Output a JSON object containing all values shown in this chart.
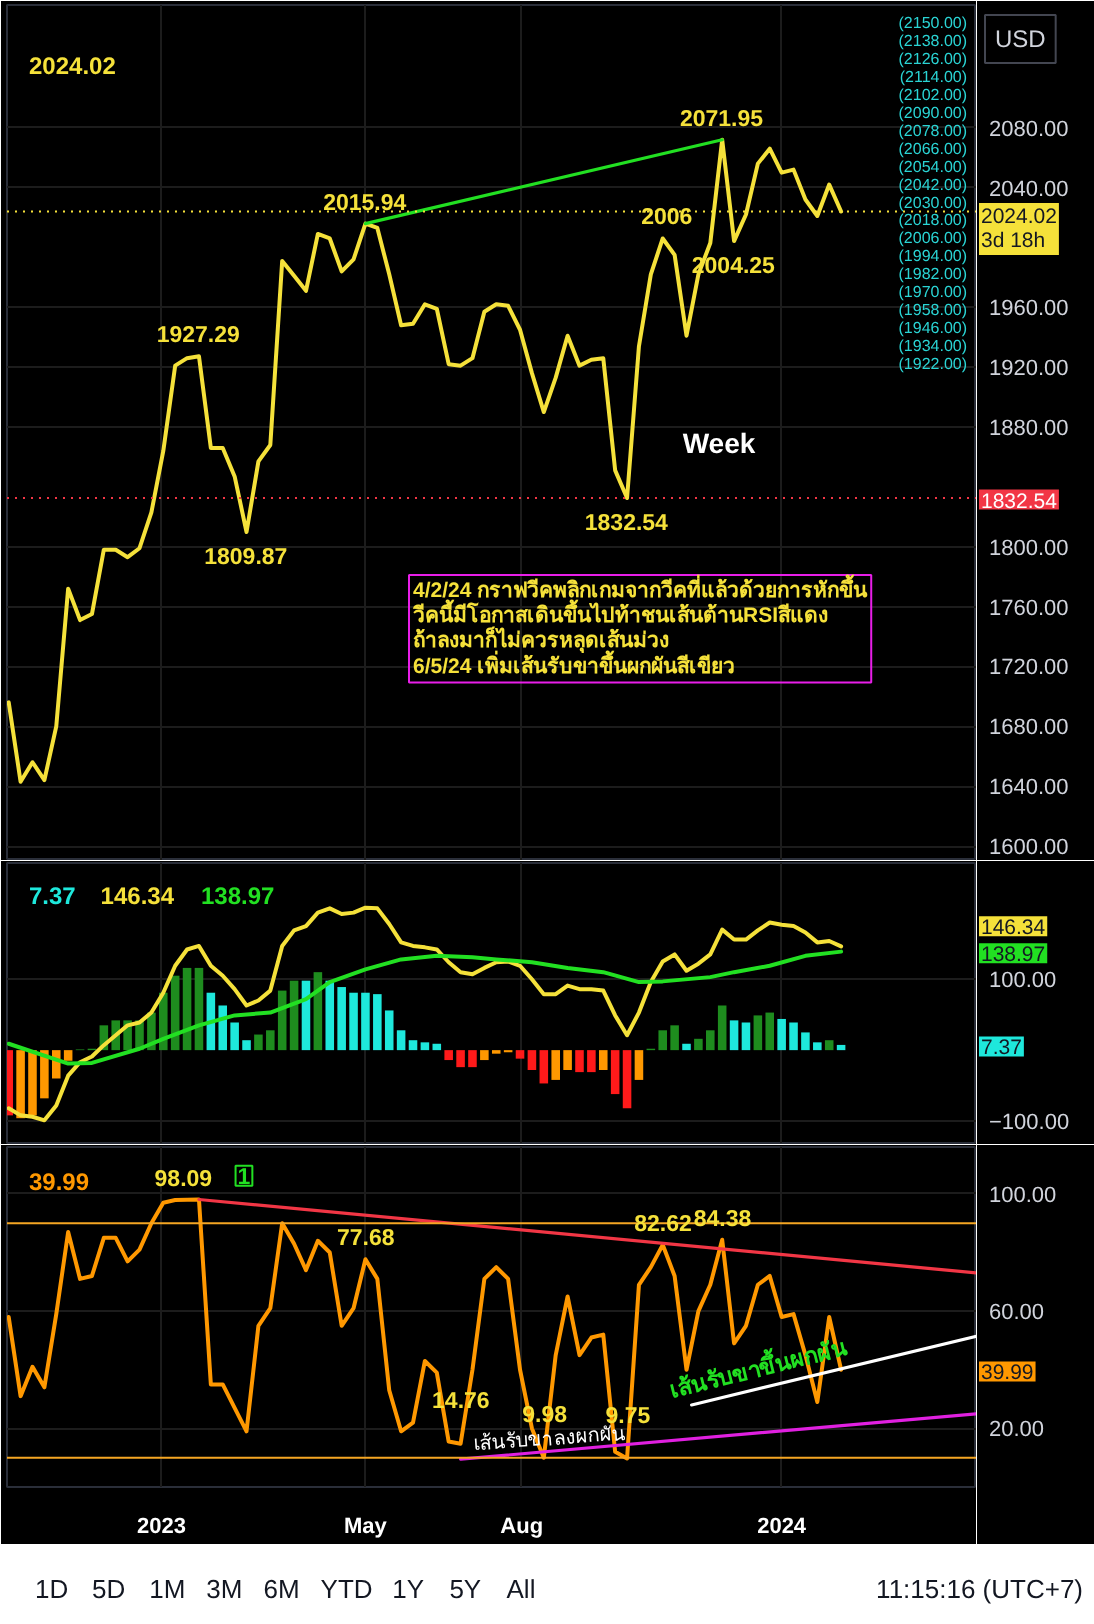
{
  "chart_data": [
    {
      "type": "line",
      "x": [
        "2022-10-03",
        "2022-10-10",
        "2022-10-17",
        "2022-10-24",
        "2022-10-31",
        "2022-11-07",
        "2022-11-14",
        "2022-11-21",
        "2022-11-28",
        "2022-12-05",
        "2022-12-12",
        "2022-12-19",
        "2022-12-26",
        "2023-01-02",
        "2023-01-09",
        "2023-01-16",
        "2023-01-23",
        "2023-01-30",
        "2023-02-06",
        "2023-02-13",
        "2023-02-20",
        "2023-02-27",
        "2023-03-06",
        "2023-03-13",
        "2023-03-20",
        "2023-03-27",
        "2023-04-03",
        "2023-04-10",
        "2023-04-17",
        "2023-04-24",
        "2023-05-01",
        "2023-05-08",
        "2023-05-15",
        "2023-05-22",
        "2023-05-29",
        "2023-06-05",
        "2023-06-12",
        "2023-06-19",
        "2023-06-26",
        "2023-07-03",
        "2023-07-10",
        "2023-07-17",
        "2023-07-24",
        "2023-07-31",
        "2023-08-07",
        "2023-08-14",
        "2023-08-21",
        "2023-08-28",
        "2023-09-04",
        "2023-09-11",
        "2023-09-18",
        "2023-09-25",
        "2023-10-02",
        "2023-10-09",
        "2023-10-16",
        "2023-10-23",
        "2023-10-30",
        "2023-11-06",
        "2023-11-13",
        "2023-11-20",
        "2023-11-27",
        "2023-12-04",
        "2023-12-11",
        "2023-12-18",
        "2023-12-25",
        "2024-01-01",
        "2024-01-08",
        "2024-01-15",
        "2024-01-22",
        "2024-01-29",
        "2024-02-05"
      ],
      "xlim": [
        "2022-10-02",
        "2024-04-25"
      ],
      "xticks": [
        {
          "value": "2023-01-01",
          "label": null
        },
        {
          "value": "2023-05-01",
          "label": null
        },
        {
          "value": "2023-08-01",
          "label": null
        },
        {
          "value": "2024-01-01",
          "label": null
        }
      ],
      "ylim": [
        1590,
        2162
      ],
      "yticks": [
        {
          "value": 1600,
          "label": "1600.00"
        },
        {
          "value": 1640,
          "label": "1640.00"
        },
        {
          "value": 1680,
          "label": "1680.00"
        },
        {
          "value": 1720,
          "label": "1720.00"
        },
        {
          "value": 1760,
          "label": "1760.00"
        },
        {
          "value": 1800,
          "label": "1800.00"
        },
        {
          "value": 1880,
          "label": "1880.00"
        },
        {
          "value": 1920,
          "label": "1920.00"
        },
        {
          "value": 1960,
          "label": "1960.00"
        },
        {
          "value": 2040,
          "label": "2040.00"
        },
        {
          "value": 2080,
          "label": "2080.00"
        }
      ],
      "y2lim": [
        1590,
        2162
      ],
      "y2ticks": [
        {
          "value": 2150,
          "label": "(2150.00)"
        },
        {
          "value": 2138,
          "label": "(2138.00)"
        },
        {
          "value": 2126,
          "label": "(2126.00)"
        },
        {
          "value": 2114,
          "label": "(2114.00)"
        },
        {
          "value": 2102,
          "label": "(2102.00)"
        },
        {
          "value": 2090,
          "label": "(2090.00)"
        },
        {
          "value": 2078,
          "label": "(2078.00)"
        },
        {
          "value": 2066,
          "label": "(2066.00)"
        },
        {
          "value": 2054,
          "label": "(2054.00)"
        },
        {
          "value": 2042,
          "label": "(2042.00)"
        },
        {
          "value": 2030,
          "label": "(2030.00)"
        },
        {
          "value": 2018,
          "label": "(2018.00)"
        },
        {
          "value": 2006,
          "label": "(2006.00)"
        },
        {
          "value": 1994,
          "label": "(1994.00)"
        },
        {
          "value": 1982,
          "label": "(1982.00)"
        },
        {
          "value": 1970,
          "label": "(1970.00)"
        },
        {
          "value": 1958,
          "label": "(1958.00)"
        },
        {
          "value": 1946,
          "label": "(1946.00)"
        },
        {
          "value": 1934,
          "label": "(1934.00)"
        },
        {
          "value": 1922,
          "label": "(1922.00)"
        }
      ],
      "tick_labels": "y",
      "grid": true,
      "series": [
        {
          "color": "#f5e13a",
          "values": [
            1696,
            1643,
            1656,
            1644,
            1680,
            1772,
            1751,
            1755,
            1798,
            1798,
            1793,
            1799,
            1823,
            1864,
            1921,
            1926,
            1927.29,
            1866,
            1866,
            1847,
            1809.87,
            1857,
            1868,
            1991,
            1981,
            1971,
            2009,
            2006,
            1984,
            1992,
            2015.94,
            2013,
            1982,
            1948,
            1949,
            1962,
            1959,
            1922,
            1921,
            1926,
            1957,
            1962,
            1961,
            1945,
            1916,
            1890,
            1913,
            1941,
            1921,
            1925,
            1926,
            1851,
            1832.54,
            1934,
            1982,
            2006,
            1995,
            1941,
            1982,
            2003,
            2071.95,
            2004.25,
            2022,
            2056,
            2066,
            2050,
            2052,
            2032,
            2021,
            2042,
            2024.02
          ]
        },
        {
          "type": "line",
          "color": "#22e022",
          "x": [
            "2023-05-01",
            "2023-11-27"
          ],
          "values": [
            2015.94,
            2071.95
          ]
        }
      ],
      "ref_lines": [
        {
          "axis": "y",
          "value": 2024.02,
          "label": "2024.02\n3d 18h",
          "color": "#f5e13a",
          "line_style": "dotted"
        },
        {
          "axis": "y",
          "value": 1832.54,
          "label": "1832.54",
          "color": "#f23645",
          "line_style": "dotted"
        }
      ],
      "annotations": [
        "2024.02",
        "USD",
        "Week",
        "4/2/24 กราฟวีคพลิกเกมจากวีคที่แล้วด้วยการหักขึ้น\nวีคนี้มีโอกาสเดินขึ้นไปท้าชนเส้นต้านRSIสีแดง\nถ้าลงมาก็ไม่ควรหลุดเส้นม่วง\n6/5/24 เพิ่มเส้นรับขาขึ้นผกผันสีเขียว",
        {
          "text": "2015.94",
          "x": "2023-05-01",
          "y": 2015.94
        },
        {
          "text": "1927.29",
          "x": "2023-01-23",
          "y": 1927.29
        },
        {
          "text": "1809.87",
          "x": "2023-02-20",
          "y": 1809.87
        },
        {
          "text": "2071.95",
          "x": "2023-11-27",
          "y": 2071.95
        },
        {
          "text": "2006",
          "x": "2023-10-23",
          "y": 2006
        },
        {
          "text": "2004.25",
          "x": "2023-12-04",
          "y": 2004.25
        },
        {
          "text": "1832.54",
          "x": "2023-10-02",
          "y": 1832.54
        }
      ]
    },
    {
      "type": "line",
      "x": [
        "2022-10-03",
        "2022-10-10",
        "2022-10-17",
        "2022-10-24",
        "2022-10-31",
        "2022-11-07",
        "2022-11-14",
        "2022-11-21",
        "2022-11-28",
        "2022-12-05",
        "2022-12-12",
        "2022-12-19",
        "2022-12-26",
        "2023-01-02",
        "2023-01-09",
        "2023-01-16",
        "2023-01-23",
        "2023-01-30",
        "2023-02-06",
        "2023-02-13",
        "2023-02-20",
        "2023-02-27",
        "2023-03-06",
        "2023-03-13",
        "2023-03-20",
        "2023-03-27",
        "2023-04-03",
        "2023-04-10",
        "2023-04-17",
        "2023-04-24",
        "2023-05-01",
        "2023-05-08",
        "2023-05-15",
        "2023-05-22",
        "2023-05-29",
        "2023-06-05",
        "2023-06-12",
        "2023-06-19",
        "2023-06-26",
        "2023-07-03",
        "2023-07-10",
        "2023-07-17",
        "2023-07-24",
        "2023-07-31",
        "2023-08-07",
        "2023-08-14",
        "2023-08-21",
        "2023-08-28",
        "2023-09-04",
        "2023-09-11",
        "2023-09-18",
        "2023-09-25",
        "2023-10-02",
        "2023-10-09",
        "2023-10-16",
        "2023-10-23",
        "2023-10-30",
        "2023-11-06",
        "2023-11-13",
        "2023-11-20",
        "2023-11-27",
        "2023-12-04",
        "2023-12-11",
        "2023-12-18",
        "2023-12-25",
        "2024-01-01",
        "2024-01-08",
        "2024-01-15",
        "2024-01-22",
        "2024-01-29",
        "2024-02-05"
      ],
      "xlim": [
        "2022-10-02",
        "2024-04-25"
      ],
      "xticks": [
        {
          "value": "2023-01-01",
          "label": null
        },
        {
          "value": "2023-05-01",
          "label": null
        },
        {
          "value": "2023-08-01",
          "label": null
        },
        {
          "value": "2024-01-01",
          "label": null
        }
      ],
      "ylim": [
        -131,
        264
      ],
      "yticks": [
        {
          "value": 100,
          "label": "100.00"
        },
        {
          "value": -100,
          "label": "−100.00"
        }
      ],
      "tick_labels": "y",
      "grid": true,
      "series": [
        {
          "type": "bar",
          "values": [
            -92,
            -96,
            -92,
            -68,
            -40,
            -15,
            1,
            2,
            35,
            42,
            42,
            42,
            53,
            81,
            105,
            116,
            116,
            81,
            63,
            39,
            14,
            22,
            28,
            84,
            98,
            98,
            110,
            98,
            89,
            81,
            81,
            79,
            56,
            28,
            14,
            11,
            9,
            -14,
            -24,
            -24,
            -14,
            -5,
            -3,
            -12,
            -28,
            -47,
            -42,
            -28,
            -31,
            -31,
            -28,
            -62,
            -82,
            -42,
            2,
            28,
            35,
            9,
            16,
            28,
            63,
            42,
            39,
            49,
            53,
            44,
            39,
            25,
            11,
            14,
            7.37
          ],
          "colors": [
            "#ff1a1a",
            "#ff9800",
            "#ff9800",
            "#ff9800",
            "#ff9800",
            "#ff9800",
            "#1e8c1e",
            "#1e8c1e",
            "#1e8c1e",
            "#1e8c1e",
            "#1e8c1e",
            "#1e8c1e",
            "#1e8c1e",
            "#1e8c1e",
            "#1e8c1e",
            "#1e8c1e",
            "#1e8c1e",
            "#1ee8dc",
            "#1ee8dc",
            "#1ee8dc",
            "#1ee8dc",
            "#1e8c1e",
            "#1e8c1e",
            "#1e8c1e",
            "#1e8c1e",
            "#1ee8dc",
            "#1e8c1e",
            "#1ee8dc",
            "#1ee8dc",
            "#1ee8dc",
            "#1ee8dc",
            "#1ee8dc",
            "#1ee8dc",
            "#1ee8dc",
            "#1ee8dc",
            "#1ee8dc",
            "#1ee8dc",
            "#ff1a1a",
            "#ff1a1a",
            "#ff1a1a",
            "#ff9800",
            "#ff9800",
            "#ff9800",
            "#ff1a1a",
            "#ff1a1a",
            "#ff1a1a",
            "#ff9800",
            "#ff9800",
            "#ff1a1a",
            "#ff1a1a",
            "#ff9800",
            "#ff1a1a",
            "#ff1a1a",
            "#ff9800",
            "#1e8c1e",
            "#1e8c1e",
            "#1e8c1e",
            "#1ee8dc",
            "#1e8c1e",
            "#1e8c1e",
            "#1e8c1e",
            "#1ee8dc",
            "#1ee8dc",
            "#1e8c1e",
            "#1e8c1e",
            "#1ee8dc",
            "#1ee8dc",
            "#1ee8dc",
            "#1ee8dc",
            "#1e8c1e",
            "#1ee8dc"
          ]
        },
        {
          "color": "#f5e13a",
          "values": [
            -82,
            -92,
            -94,
            -99,
            -78,
            -36,
            -17,
            -9,
            7,
            21,
            35,
            39,
            53,
            81,
            119,
            142,
            147,
            119,
            105,
            86,
            63,
            70,
            84,
            147,
            169,
            175,
            194,
            200,
            192,
            194,
            201,
            200,
            178,
            152,
            147,
            145,
            142,
            124,
            110,
            107,
            116,
            124,
            125,
            119,
            100,
            79,
            79,
            91,
            86,
            86,
            84,
            49,
            21,
            53,
            96,
            125,
            135,
            112,
            122,
            135,
            170,
            156,
            156,
            169,
            180,
            177,
            175,
            166,
            152,
            154,
            146.34
          ]
        },
        {
          "color": "#22e022",
          "x": [
            "2022-10-03",
            "2022-11-07",
            "2022-11-21",
            "2022-12-19",
            "2023-01-02",
            "2023-01-23",
            "2023-02-13",
            "2023-03-06",
            "2023-03-27",
            "2023-04-10",
            "2023-05-01",
            "2023-05-22",
            "2023-06-12",
            "2023-07-03",
            "2023-07-17",
            "2023-08-07",
            "2023-08-28",
            "2023-09-18",
            "2023-10-09",
            "2023-10-23",
            "2023-11-20",
            "2023-12-04",
            "2023-12-25",
            "2024-01-15",
            "2024-02-05"
          ],
          "values": [
            9,
            -19,
            -18,
            2,
            16,
            35,
            49,
            53,
            72,
            96,
            114,
            128,
            133,
            131,
            128,
            124,
            116,
            110,
            96,
            97,
            103,
            110,
            119,
            133,
            138.97
          ]
        }
      ],
      "annotations": [
        "7.37",
        "146.34",
        "138.97",
        "7.37",
        "146.34",
        "138.97"
      ]
    },
    {
      "type": "line",
      "x": [
        "2022-10-03",
        "2022-10-10",
        "2022-10-17",
        "2022-10-24",
        "2022-10-31",
        "2022-11-07",
        "2022-11-14",
        "2022-11-21",
        "2022-11-28",
        "2022-12-05",
        "2022-12-12",
        "2022-12-19",
        "2022-12-26",
        "2023-01-02",
        "2023-01-09",
        "2023-01-16",
        "2023-01-23",
        "2023-01-30",
        "2023-02-06",
        "2023-02-13",
        "2023-02-20",
        "2023-02-27",
        "2023-03-06",
        "2023-03-13",
        "2023-03-20",
        "2023-03-27",
        "2023-04-03",
        "2023-04-10",
        "2023-04-17",
        "2023-04-24",
        "2023-05-01",
        "2023-05-08",
        "2023-05-15",
        "2023-05-22",
        "2023-05-29",
        "2023-06-05",
        "2023-06-12",
        "2023-06-19",
        "2023-06-26",
        "2023-07-03",
        "2023-07-10",
        "2023-07-17",
        "2023-07-24",
        "2023-07-31",
        "2023-08-07",
        "2023-08-14",
        "2023-08-21",
        "2023-08-28",
        "2023-09-04",
        "2023-09-11",
        "2023-09-18",
        "2023-09-25",
        "2023-10-02",
        "2023-10-09",
        "2023-10-16",
        "2023-10-23",
        "2023-10-30",
        "2023-11-06",
        "2023-11-13",
        "2023-11-20",
        "2023-11-27",
        "2023-12-04",
        "2023-12-11",
        "2023-12-18",
        "2023-12-25",
        "2024-01-01",
        "2024-01-08",
        "2024-01-15",
        "2024-01-22",
        "2024-01-29",
        "2024-02-05"
      ],
      "xlim": [
        "2022-10-02",
        "2024-04-25"
      ],
      "xticks": [
        {
          "value": "2023-01-01",
          "label": "2023"
        },
        {
          "value": "2023-05-01",
          "label": "May"
        },
        {
          "value": "2023-08-01",
          "label": "Aug"
        },
        {
          "value": "2024-01-01",
          "label": "2024"
        }
      ],
      "ylim": [
        0,
        116
      ],
      "yticks": [
        {
          "value": 20,
          "label": "20.00"
        },
        {
          "value": 60,
          "label": "60.00"
        },
        {
          "value": 100,
          "label": "100.00"
        }
      ],
      "grid": true,
      "series": [
        {
          "color": "#ff9800",
          "values": [
            58,
            31,
            41,
            34,
            59,
            87,
            71,
            72,
            85,
            85,
            77,
            81,
            90,
            97,
            97.9,
            98,
            98.09,
            35,
            35,
            27,
            19,
            55,
            61,
            90,
            83,
            74,
            84,
            80,
            55,
            61,
            77.68,
            71,
            33,
            19,
            22,
            43,
            39,
            15.5,
            14.76,
            40,
            71,
            75,
            71,
            40,
            20,
            9.98,
            45,
            65,
            45,
            51,
            52,
            12,
            9.75,
            69,
            75,
            82.62,
            72,
            40,
            60,
            69,
            84.38,
            49,
            55,
            69,
            72,
            58,
            59,
            45,
            29,
            58,
            39.99
          ]
        },
        {
          "color": "#f23645",
          "x": [
            "2023-01-23",
            "2024-04-25"
          ],
          "values": [
            98.09,
            73
          ]
        },
        {
          "color": "#ffffff",
          "x": [
            "2023-11-09",
            "2024-04-25"
          ],
          "values": [
            28,
            51.5
          ]
        },
        {
          "color": "#e020e0",
          "x": [
            "2023-06-26",
            "2024-04-25"
          ],
          "values": [
            9.5,
            25
          ]
        }
      ],
      "ref_lines": [
        {
          "axis": "y",
          "value": 90,
          "color": "#f5a623"
        },
        {
          "axis": "y",
          "value": 10,
          "color": "#f5a623"
        }
      ],
      "annotations": [
        "39.99",
        "39.99",
        "1D",
        "5D",
        "1M",
        "3M",
        "6M",
        "YTD",
        "1Y",
        "5Y",
        "All",
        "11:15:16 (UTC+7)",
        {
          "text": "98.09",
          "x": "2023-01-23",
          "y": 98.09
        },
        {
          "text": "1",
          "x": "2023-01-23",
          "y": 98.09
        },
        {
          "text": "77.68",
          "x": "2023-05-01",
          "y": 77.68
        },
        {
          "text": "14.76",
          "x": "2023-06-26",
          "y": 14.76
        },
        {
          "text": "9.98",
          "x": "2023-08-14",
          "y": 9.98
        },
        {
          "text": "9.75",
          "x": "2023-10-02",
          "y": 9.75
        },
        {
          "text": "82.62",
          "x": "2023-10-23",
          "y": 82.62
        },
        {
          "text": "84.38",
          "x": "2023-11-27",
          "y": 84.38
        },
        {
          "text": "เส้นรับขาลงผกผัน",
          "x": "2023-08-14",
          "y": 12
        },
        {
          "text": "เส้นรับขาขึ้นผกผัน",
          "x": "2023-12-15",
          "y": 33
        }
      ]
    }
  ]
}
